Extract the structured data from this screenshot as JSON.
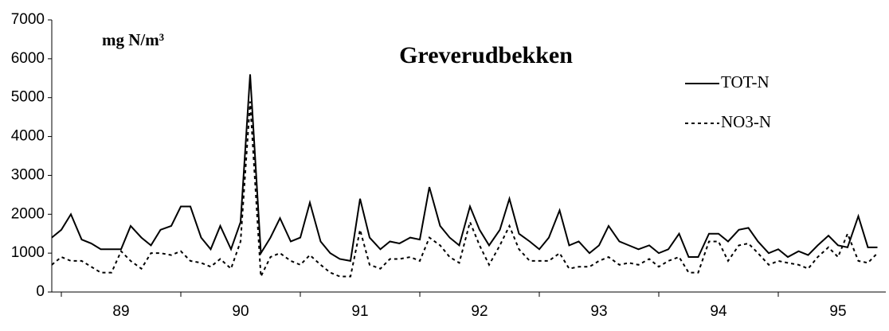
{
  "chart_data": {
    "type": "line",
    "title": "Greverudbekken",
    "unit_label": "mg N/m³",
    "x": [
      88.92,
      89.0,
      89.08,
      89.17,
      89.25,
      89.33,
      89.42,
      89.5,
      89.58,
      89.67,
      89.75,
      89.83,
      89.92,
      90.0,
      90.08,
      90.17,
      90.25,
      90.33,
      90.42,
      90.5,
      90.58,
      90.67,
      90.75,
      90.83,
      90.92,
      91.0,
      91.08,
      91.17,
      91.25,
      91.33,
      91.42,
      91.5,
      91.58,
      91.67,
      91.75,
      91.83,
      91.92,
      92.0,
      92.08,
      92.17,
      92.25,
      92.33,
      92.42,
      92.5,
      92.58,
      92.67,
      92.75,
      92.83,
      92.92,
      93.0,
      93.08,
      93.17,
      93.25,
      93.33,
      93.42,
      93.5,
      93.58,
      93.67,
      93.75,
      93.83,
      93.92,
      94.0,
      94.08,
      94.17,
      94.25,
      94.33,
      94.42,
      94.5,
      94.58,
      94.67,
      94.75,
      94.83,
      94.92,
      95.0,
      95.08,
      95.17,
      95.25,
      95.33,
      95.42,
      95.5,
      95.58,
      95.67,
      95.75,
      95.83
    ],
    "series": [
      {
        "name": "TOT-N",
        "color": "#000000",
        "dash": "solid",
        "values": [
          1400,
          1600,
          2000,
          1350,
          1250,
          1100,
          1100,
          1100,
          1700,
          1400,
          1200,
          1600,
          1700,
          2200,
          2200,
          1400,
          1100,
          1700,
          1100,
          1800,
          5600,
          1000,
          1400,
          1900,
          1300,
          1400,
          2300,
          1300,
          1000,
          850,
          800,
          2400,
          1400,
          1100,
          1300,
          1250,
          1400,
          1350,
          2700,
          1700,
          1400,
          1200,
          2200,
          1600,
          1200,
          1600,
          2400,
          1500,
          1300,
          1100,
          1400,
          2100,
          1200,
          1300,
          1000,
          1200,
          1700,
          1300,
          1200,
          1100,
          1200,
          1000,
          1100,
          1500,
          900,
          900,
          1500,
          1500,
          1300,
          1600,
          1650,
          1300,
          1000,
          1100,
          900,
          1050,
          950,
          1200,
          1450,
          1200,
          1150,
          1950,
          1150,
          1150
        ]
      },
      {
        "name": "NO3-N",
        "color": "#000000",
        "dash": "dashed",
        "values": [
          700,
          900,
          800,
          800,
          650,
          500,
          500,
          1050,
          800,
          600,
          1000,
          1000,
          950,
          1050,
          800,
          750,
          650,
          850,
          600,
          1300,
          4900,
          400,
          900,
          1000,
          800,
          700,
          950,
          700,
          500,
          400,
          400,
          1600,
          700,
          600,
          850,
          850,
          900,
          800,
          1400,
          1200,
          900,
          750,
          1800,
          1200,
          700,
          1200,
          1700,
          1100,
          800,
          800,
          800,
          1000,
          600,
          650,
          650,
          800,
          900,
          700,
          750,
          700,
          850,
          650,
          800,
          900,
          500,
          500,
          1300,
          1300,
          800,
          1200,
          1250,
          1000,
          700,
          800,
          750,
          700,
          600,
          900,
          1150,
          900,
          1500,
          800,
          750,
          1000
        ]
      }
    ],
    "xlim": [
      88.92,
      95.9
    ],
    "xticks": [
      89,
      90,
      91,
      92,
      93,
      94,
      95
    ],
    "xlabels": [
      {
        "value": 89.5,
        "label": "89"
      },
      {
        "value": 90.5,
        "label": "90"
      },
      {
        "value": 91.5,
        "label": "91"
      },
      {
        "value": 92.5,
        "label": "92"
      },
      {
        "value": 93.5,
        "label": "93"
      },
      {
        "value": 94.5,
        "label": "94"
      },
      {
        "value": 95.5,
        "label": "95"
      }
    ],
    "ylim": [
      0,
      7000
    ],
    "yticks": [
      0,
      1000,
      2000,
      3000,
      4000,
      5000,
      6000,
      7000
    ],
    "grid": false,
    "legend": "upper right"
  }
}
